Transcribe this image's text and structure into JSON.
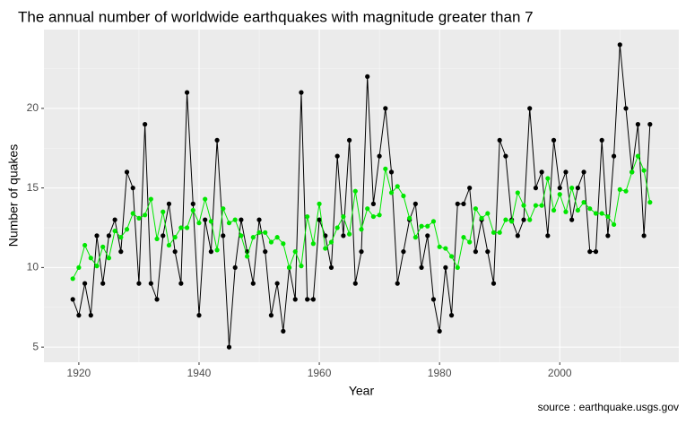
{
  "chart_data": {
    "type": "line",
    "title": "The annual number of worldwide earthquakes with magnitude greater than 7",
    "x_label": "Year",
    "y_label": "Number of quakes",
    "caption": "source : earthquake.usgs.gov",
    "x": [
      1919,
      1920,
      1921,
      1922,
      1923,
      1924,
      1925,
      1926,
      1927,
      1928,
      1929,
      1930,
      1931,
      1932,
      1933,
      1934,
      1935,
      1936,
      1937,
      1938,
      1939,
      1940,
      1941,
      1942,
      1943,
      1944,
      1945,
      1946,
      1947,
      1948,
      1949,
      1950,
      1951,
      1952,
      1953,
      1954,
      1955,
      1956,
      1957,
      1958,
      1959,
      1960,
      1961,
      1962,
      1963,
      1964,
      1965,
      1966,
      1967,
      1968,
      1969,
      1970,
      1971,
      1972,
      1973,
      1974,
      1975,
      1976,
      1977,
      1978,
      1979,
      1980,
      1981,
      1982,
      1983,
      1984,
      1985,
      1986,
      1987,
      1988,
      1989,
      1990,
      1991,
      1992,
      1993,
      1994,
      1995,
      1996,
      1997,
      1998,
      1999,
      2000,
      2001,
      2002,
      2003,
      2004,
      2005,
      2006,
      2007,
      2008,
      2009,
      2010,
      2011,
      2012,
      2013,
      2014,
      2015
    ],
    "series": [
      {
        "color": "#000000",
        "values": [
          8,
          7,
          9,
          7,
          12,
          9,
          12,
          13,
          11,
          16,
          15,
          9,
          19,
          9,
          8,
          12,
          14,
          11,
          9,
          21,
          14,
          7,
          13,
          11,
          18,
          12,
          5,
          10,
          13,
          11,
          9,
          13,
          11,
          7,
          9,
          6,
          10,
          8,
          21,
          8,
          8,
          13,
          12,
          10,
          17,
          12,
          18,
          9,
          11,
          22,
          14,
          17,
          20,
          16,
          9,
          11,
          13,
          14,
          10,
          12,
          8,
          6,
          10,
          7,
          14,
          14,
          15,
          11,
          13,
          11,
          9,
          18,
          17,
          13,
          12,
          13,
          20,
          15,
          16,
          12,
          18,
          15,
          16,
          13,
          15,
          16,
          11,
          11,
          18,
          12,
          17,
          24,
          20,
          16,
          19,
          12,
          19
        ]
      },
      {
        "color": "#00e600",
        "values": [
          9.3,
          10,
          11.4,
          10.6,
          10.1,
          11.3,
          10.6,
          12.3,
          11.9,
          12.4,
          13.4,
          13.1,
          13.3,
          14.3,
          11.8,
          13.5,
          11.4,
          11.9,
          12.5,
          12.5,
          13.6,
          12.8,
          14.3,
          12.9,
          11.1,
          13.7,
          12.8,
          13,
          12,
          10.7,
          11.9,
          12.2,
          12.2,
          11.6,
          11.9,
          11.5,
          10,
          11,
          10.1,
          13.2,
          11.5,
          14,
          11.2,
          11.6,
          12.5,
          13.2,
          12.1,
          14.8,
          12.4,
          13.7,
          13.2,
          13.3,
          16.2,
          14.7,
          15.1,
          14.5,
          13.1,
          11.9,
          12.6,
          12.6,
          12.9,
          11.3,
          11.2,
          10.7,
          10,
          11.9,
          11.6,
          13.7,
          13.1,
          13.4,
          12.2,
          12.2,
          13,
          12.9,
          14.7,
          13.9,
          13,
          13.9,
          13.9,
          15.6,
          13.6,
          14.6,
          13.5,
          15,
          13.6,
          14.1,
          13.7,
          13.4,
          13.4,
          13.2,
          12.7,
          14.9,
          14.8,
          16,
          17,
          16.1,
          14.1
        ]
      }
    ],
    "xlim": [
      1914.2,
      2019.8
    ],
    "xticks": [
      1920,
      1940,
      1960,
      1980,
      2000
    ],
    "ylim": [
      4.05,
      24.95
    ],
    "yticks": [
      5,
      10,
      15,
      20
    ],
    "grid": true
  }
}
